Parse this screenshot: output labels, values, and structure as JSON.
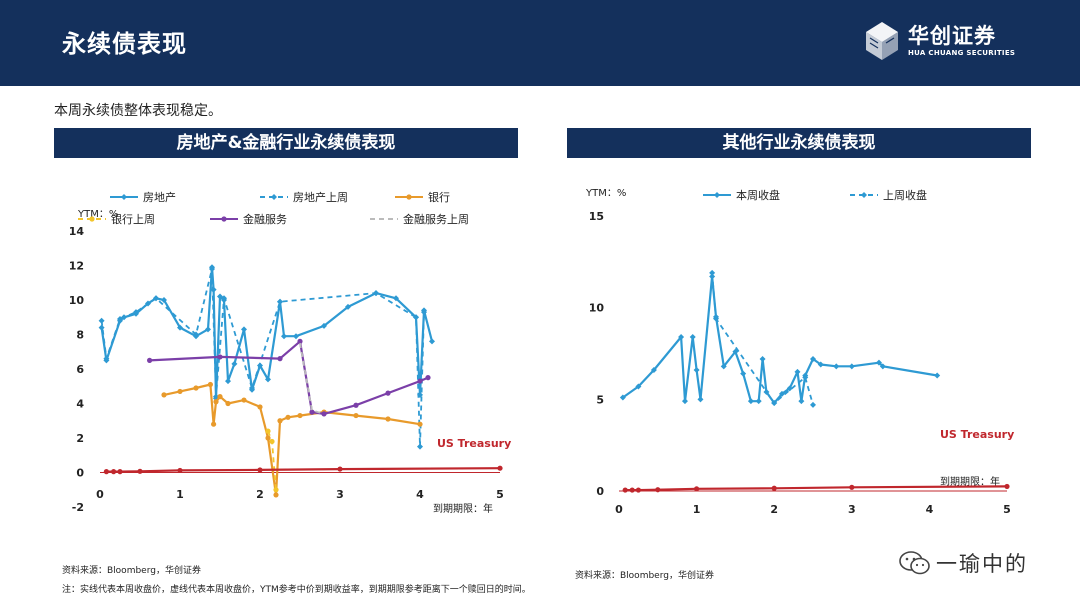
{
  "header": {
    "title": "永续债表现"
  },
  "logo": {
    "cn": "华创证券",
    "en": "HUA CHUANG SECURITIES"
  },
  "summary": "本周永续债整体表现稳定。",
  "watermark": {
    "text": "一瑜中的"
  },
  "footer": {
    "source_left": "资料来源：Bloomberg，华创证券",
    "source_right": "资料来源：Bloomberg，华创证券",
    "note": "注：实线代表本周收盘价，虚线代表本周收盘价，YTM参考中价到期收益率，到期期限参考距离下一个赎回日的时间。"
  },
  "chart_data": [
    {
      "type": "line",
      "title": "房地产&金融行业永续债表现",
      "ylabel": "YTM：%",
      "xlabel": "到期期限：年",
      "xlim": [
        0,
        5
      ],
      "ylim": [
        -2,
        14
      ],
      "x_ticks": [
        "0",
        "1",
        "2",
        "3",
        "4",
        "5"
      ],
      "y_ticks": [
        "-2",
        "0",
        "2",
        "4",
        "6",
        "8",
        "10",
        "12",
        "14"
      ],
      "legend_placement": "top",
      "legend": [
        "房地产",
        "房地产上周",
        "银行",
        "银行上周",
        "金融服务",
        "金融服务上周"
      ],
      "annotation": "US Treasury",
      "series": [
        {
          "name": "房地产",
          "color": "#2e9ad3",
          "style": "solid",
          "marker": "diamond",
          "x": [
            0.02,
            0.08,
            0.25,
            0.3,
            0.45,
            0.6,
            0.7,
            0.8,
            1.0,
            1.2,
            1.35,
            1.4,
            1.42,
            1.45,
            1.5,
            1.55,
            1.6,
            1.68,
            1.8,
            1.9,
            2.0,
            2.1,
            2.25,
            2.3,
            2.45,
            2.8,
            3.1,
            3.45,
            3.7,
            3.95,
            4.0,
            4.05,
            4.15
          ],
          "y": [
            8.4,
            6.5,
            8.8,
            9.0,
            9.2,
            9.8,
            10.1,
            10.0,
            8.4,
            7.9,
            8.3,
            11.9,
            10.6,
            4.3,
            10.2,
            10.0,
            5.3,
            6.3,
            8.3,
            4.8,
            6.2,
            5.4,
            9.9,
            7.9,
            7.9,
            8.5,
            9.6,
            10.4,
            10.1,
            9.0,
            4.5,
            9.4,
            7.6
          ]
        },
        {
          "name": "房地产上周",
          "color": "#2e9ad3",
          "style": "dashed",
          "marker": "diamond",
          "x": [
            0.02,
            0.08,
            0.25,
            0.45,
            0.7,
            1.2,
            1.4,
            1.45,
            1.55,
            1.9,
            2.25,
            3.45,
            3.95,
            4.0,
            4.05
          ],
          "y": [
            8.8,
            6.6,
            8.9,
            9.3,
            10.1,
            8.0,
            11.8,
            4.4,
            10.1,
            4.9,
            9.9,
            10.4,
            9.0,
            1.5,
            9.3
          ]
        },
        {
          "name": "银行",
          "color": "#e89a2b",
          "style": "solid",
          "marker": "circle",
          "x": [
            0.8,
            1.0,
            1.2,
            1.38,
            1.42,
            1.45,
            1.5,
            1.6,
            1.8,
            2.0,
            2.1,
            2.2,
            2.25,
            2.35,
            2.5,
            2.8,
            3.2,
            3.6,
            4.0
          ],
          "y": [
            4.5,
            4.7,
            4.9,
            5.1,
            2.8,
            4.1,
            4.4,
            4.0,
            4.2,
            3.8,
            2.0,
            -1.3,
            3.0,
            3.2,
            3.3,
            3.5,
            3.3,
            3.1,
            2.8
          ]
        },
        {
          "name": "银行上周",
          "color": "#f3c52b",
          "style": "dashed",
          "marker": "circle",
          "x": [
            2.1,
            2.15,
            2.2
          ],
          "y": [
            2.4,
            1.8,
            -1.0
          ]
        },
        {
          "name": "金融服务",
          "color": "#7b3fa8",
          "style": "solid",
          "marker": "circle",
          "x": [
            0.62,
            1.5,
            2.25,
            2.5,
            2.65,
            2.8,
            3.2,
            3.6,
            4.0,
            4.1
          ],
          "y": [
            6.5,
            6.7,
            6.6,
            7.6,
            3.5,
            3.4,
            3.9,
            4.6,
            5.3,
            5.5
          ]
        },
        {
          "name": "金融服务上周",
          "color": "#bbbbbb",
          "style": "dashed",
          "marker": "none",
          "x": [
            2.5,
            2.65,
            2.8
          ],
          "y": [
            7.5,
            3.6,
            3.4
          ]
        },
        {
          "name": "US Treasury",
          "color": "#c0272d",
          "style": "solid",
          "marker": "circle",
          "x": [
            0.08,
            0.17,
            0.25,
            0.5,
            1.0,
            2.0,
            3.0,
            5.0
          ],
          "y": [
            0.05,
            0.05,
            0.05,
            0.07,
            0.12,
            0.15,
            0.2,
            0.25
          ]
        }
      ]
    },
    {
      "type": "line",
      "title": "其他行业永续债表现",
      "ylabel": "YTM：%",
      "xlabel": "到期期限：年",
      "xlim": [
        0,
        5
      ],
      "ylim": [
        0,
        15
      ],
      "x_ticks": [
        "0",
        "1",
        "2",
        "3",
        "4",
        "5"
      ],
      "y_ticks": [
        "0",
        "5",
        "10",
        "15"
      ],
      "legend_placement": "top",
      "legend": [
        "本周收盘",
        "上周收盘"
      ],
      "annotation": "US Treasury",
      "series": [
        {
          "name": "本周收盘",
          "color": "#2e9ad3",
          "style": "solid",
          "marker": "diamond",
          "x": [
            0.05,
            0.25,
            0.45,
            0.8,
            0.85,
            0.95,
            1.0,
            1.05,
            1.2,
            1.25,
            1.35,
            1.5,
            1.6,
            1.7,
            1.8,
            1.85,
            1.9,
            2.0,
            2.1,
            2.2,
            2.3,
            2.35,
            2.4,
            2.5,
            2.6,
            2.8,
            3.0,
            3.35,
            3.4,
            4.1
          ],
          "y": [
            5.1,
            5.7,
            6.6,
            8.4,
            4.9,
            8.4,
            6.6,
            5.0,
            11.7,
            9.5,
            6.8,
            7.6,
            6.4,
            4.9,
            4.9,
            7.2,
            5.4,
            4.8,
            5.3,
            5.6,
            6.5,
            4.9,
            6.3,
            7.2,
            6.9,
            6.8,
            6.8,
            7.0,
            6.8,
            6.3
          ]
        },
        {
          "name": "上周收盘",
          "color": "#2e9ad3",
          "style": "dashed",
          "marker": "diamond",
          "x": [
            1.2,
            1.25,
            2.0,
            2.4,
            2.5
          ],
          "y": [
            11.9,
            9.4,
            4.8,
            6.2,
            4.7
          ]
        },
        {
          "name": "US Treasury",
          "color": "#c0272d",
          "style": "solid",
          "marker": "circle",
          "x": [
            0.08,
            0.17,
            0.25,
            0.5,
            1.0,
            2.0,
            3.0,
            5.0
          ],
          "y": [
            0.05,
            0.05,
            0.05,
            0.07,
            0.12,
            0.15,
            0.2,
            0.25
          ]
        }
      ]
    }
  ]
}
